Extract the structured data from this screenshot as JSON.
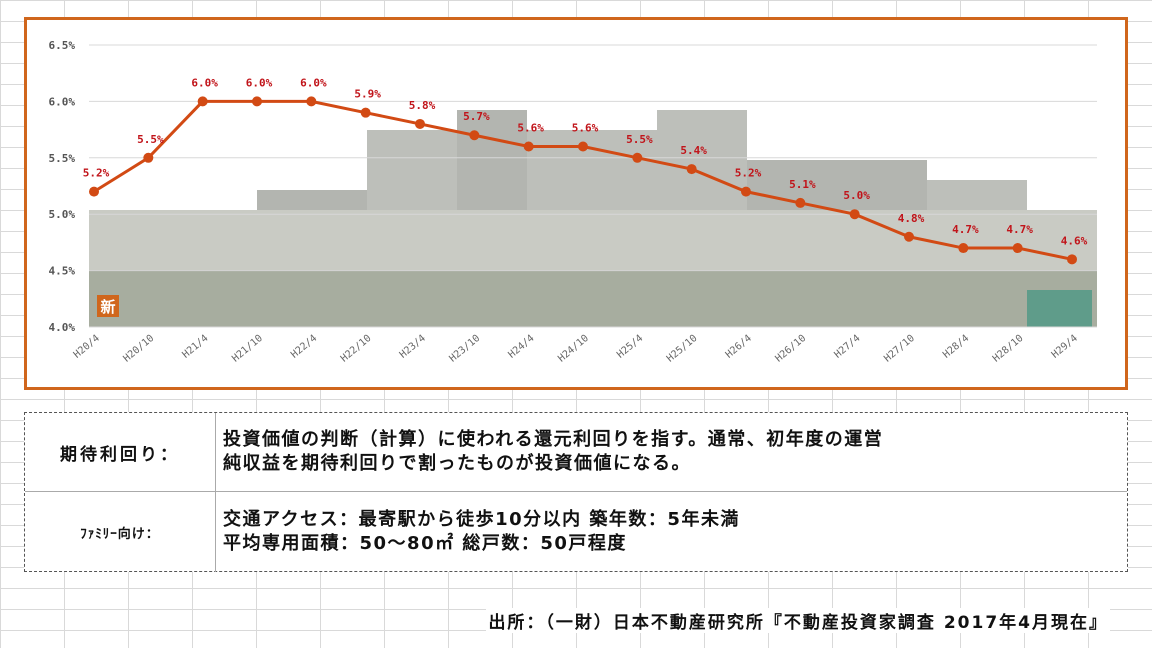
{
  "chart_data": {
    "type": "line",
    "categories": [
      "H20/4",
      "H20/10",
      "H21/4",
      "H21/10",
      "H22/4",
      "H22/10",
      "H23/4",
      "H23/10",
      "H24/4",
      "H24/10",
      "H25/4",
      "H25/10",
      "H26/4",
      "H26/10",
      "H27/4",
      "H27/10",
      "H28/4",
      "H28/10",
      "H29/4"
    ],
    "series": [
      {
        "values": [
          5.2,
          5.5,
          6.0,
          6.0,
          6.0,
          5.9,
          5.8,
          5.7,
          5.6,
          5.6,
          5.5,
          5.4,
          5.2,
          5.1,
          5.0,
          4.8,
          4.7,
          4.7,
          4.6
        ],
        "labels": [
          "5.2%",
          "5.5%",
          "6.0%",
          "6.0%",
          "6.0%",
          "5.9%",
          "5.8%",
          "5.7%",
          "5.6%",
          "5.6%",
          "5.5%",
          "5.4%",
          "5.2%",
          "5.1%",
          "5.0%",
          "4.8%",
          "4.7%",
          "4.7%",
          "4.6%"
        ]
      }
    ],
    "yticks": [
      "4.0%",
      "4.5%",
      "5.0%",
      "5.5%",
      "6.0%",
      "6.5%"
    ],
    "ylim": [
      4.0,
      6.5
    ],
    "grid": true,
    "line_color": "#d24a14",
    "label_color": "#c1141a",
    "background_photo": "apartment-buildings-photo",
    "photo_badge": "新"
  },
  "info": {
    "row1": {
      "label": "期待利回り：",
      "line1": "投資価値の判断（計算）に使われる還元利回りを指す。通常、初年度の運営",
      "line2": "純収益を期待利回りで割ったものが投資価値になる。"
    },
    "row2": {
      "label": "ﾌｧﾐﾘｰ向け：",
      "line1": "交通アクセス：最寄駅から徒歩10分以内 築年数：5年未満",
      "line2": "平均専用面積：50～80㎡ 総戸数：50戸程度"
    }
  },
  "source": "出所：（一財）日本不動産研究所『不動産投資家調査 2017年4月現在』",
  "colors": {
    "frame": "#d0661c",
    "line": "#d24a14",
    "labels": "#c1141a"
  }
}
